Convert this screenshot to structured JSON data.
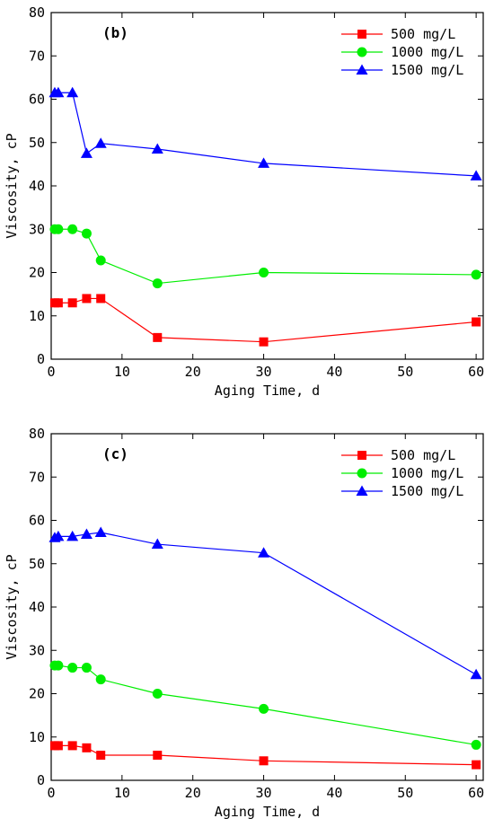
{
  "chart_data": [
    {
      "type": "line",
      "panel_label": "(b)",
      "xlabel": "Aging Time, d",
      "ylabel": "Viscosity, cP",
      "xlim": [
        0,
        61
      ],
      "ylim": [
        0,
        80
      ],
      "xticks": [
        0,
        10,
        20,
        30,
        40,
        50,
        60
      ],
      "yticks": [
        0,
        10,
        20,
        30,
        40,
        50,
        60,
        70,
        80
      ],
      "grid": false,
      "legend_position": "top-right",
      "x": [
        0.5,
        1,
        3,
        5,
        7,
        15,
        30,
        60
      ],
      "series": [
        {
          "name": "500 mg/L",
          "color": "#ff0000",
          "marker": "square",
          "values": [
            13,
            13,
            13,
            14,
            14,
            5,
            4,
            8.6
          ]
        },
        {
          "name": "1000 mg/L",
          "color": "#00ee00",
          "marker": "circle",
          "values": [
            30,
            30,
            30,
            29,
            22.8,
            17.5,
            20,
            19.5
          ]
        },
        {
          "name": "1500 mg/L",
          "color": "#0000ff",
          "marker": "triangle",
          "values": [
            61.5,
            61.5,
            61.5,
            47.5,
            49.8,
            48.5,
            45.2,
            42.3
          ]
        }
      ]
    },
    {
      "type": "line",
      "panel_label": "(c)",
      "xlabel": "Aging Time, d",
      "ylabel": "Viscosity, cP",
      "xlim": [
        0,
        61
      ],
      "ylim": [
        0,
        80
      ],
      "xticks": [
        0,
        10,
        20,
        30,
        40,
        50,
        60
      ],
      "yticks": [
        0,
        10,
        20,
        30,
        40,
        50,
        60,
        70,
        80
      ],
      "grid": false,
      "legend_position": "top-right",
      "x": [
        0.5,
        1,
        3,
        5,
        7,
        15,
        30,
        60
      ],
      "series": [
        {
          "name": "500 mg/L",
          "color": "#ff0000",
          "marker": "square",
          "values": [
            8,
            8,
            8,
            7.5,
            5.8,
            5.8,
            4.5,
            3.6
          ]
        },
        {
          "name": "1000 mg/L",
          "color": "#00ee00",
          "marker": "circle",
          "values": [
            26.5,
            26.5,
            26,
            26,
            23.3,
            20,
            16.5,
            8.2
          ]
        },
        {
          "name": "1500 mg/L",
          "color": "#0000ff",
          "marker": "triangle",
          "values": [
            56,
            56.3,
            56.3,
            56.8,
            57.2,
            54.5,
            52.5,
            24.4
          ]
        }
      ]
    }
  ]
}
